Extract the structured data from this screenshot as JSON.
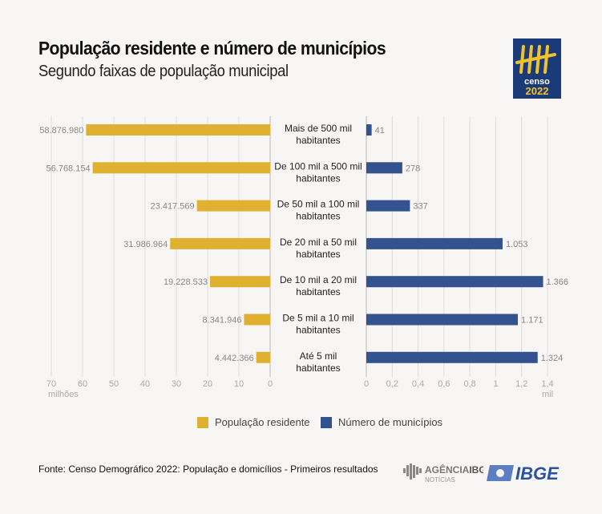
{
  "header": {
    "title": "População residente e número de municípios",
    "subtitle": "Segundo faixas de população municipal"
  },
  "logo": {
    "text": "censo",
    "year": "2022"
  },
  "chart_data": {
    "type": "bar",
    "orientation": "horizontal",
    "categories": [
      [
        "Mais de 500 mil",
        "habitantes"
      ],
      [
        "De 100 mil a 500 mil",
        "habitantes"
      ],
      [
        "De 50 mil a 100 mil",
        "habitantes"
      ],
      [
        "De 20 mil a 50 mil",
        "habitantes"
      ],
      [
        "De 10 mil a 20 mil",
        "habitantes"
      ],
      [
        "De 5 mil a 10 mil",
        "habitantes"
      ],
      [
        "Até 5 mil",
        "habitantes"
      ]
    ],
    "series": [
      {
        "name": "População residente",
        "color": "#e0b030",
        "values": [
          58876980,
          56768154,
          23417569,
          31986964,
          19228533,
          8341946,
          4442366
        ],
        "labels": [
          "58.876.980",
          "56.768.154",
          "23.417.569",
          "31.986.964",
          "19.228.533",
          "8.341.946",
          "4.442.366"
        ],
        "axis_ticks": [
          "70",
          "60",
          "50",
          "40",
          "30",
          "20",
          "10",
          "0"
        ],
        "axis_unit": "milhões",
        "xlim": [
          0,
          70
        ]
      },
      {
        "name": "Número de municípios",
        "color": "#34528f",
        "values": [
          41,
          278,
          337,
          1053,
          1366,
          1171,
          1324
        ],
        "labels": [
          "41",
          "278",
          "337",
          "1.053",
          "1.366",
          "1.171",
          "1.324"
        ],
        "axis_ticks": [
          "0",
          "0,2",
          "0,4",
          "0,6",
          "0,8",
          "1",
          "1,2",
          "1,4"
        ],
        "axis_unit": "mil",
        "xlim": [
          0,
          1.4
        ]
      }
    ],
    "grid": true,
    "legend": "bottom"
  },
  "footer": {
    "source": "Fonte: Censo Demográfico 2022: População e domicílios - Primeiros resultados",
    "agencia": "AGÊNCIA",
    "agencia_ibge": "IBGE",
    "noticias": "NOTÍCIAS",
    "ibge": "IBGE"
  }
}
